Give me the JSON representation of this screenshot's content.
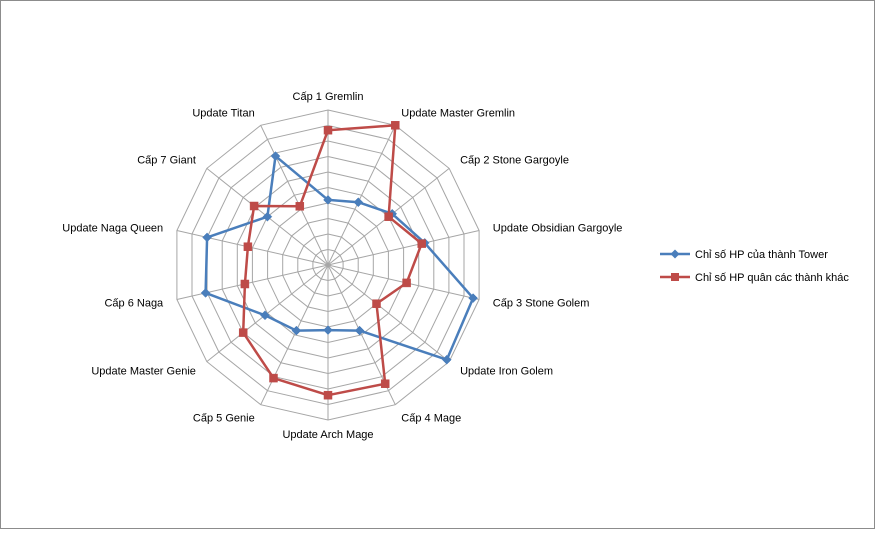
{
  "chart_data": {
    "type": "radar",
    "categories": [
      "Cấp 1 Gremlin",
      "Update Master Gremlin",
      "Cấp 2 Stone  Gargoyle",
      "Update Obsidian Gargoyle",
      "Cấp 3 Stone Golem",
      "Update Iron Golem",
      "Cấp 4 Mage",
      "Update Arch Mage",
      "Cấp 5 Genie",
      "Update Master Genie",
      "Cấp 6 Naga",
      "Update Naga Queen",
      "Cấp 7 Giant",
      "Update Titan"
    ],
    "rmax": 10,
    "rings": 10,
    "series": [
      {
        "name": "Chỉ số HP của thành Tower",
        "color": "#4a7ebb",
        "marker": "diamond",
        "values": [
          4.2,
          4.5,
          5.3,
          6.4,
          9.6,
          9.8,
          4.7,
          4.2,
          4.7,
          5.2,
          8.1,
          8.0,
          5.0,
          7.8
        ]
      },
      {
        "name": "Chỉ số HP quân các thành khác",
        "color": "#be4b48",
        "marker": "square",
        "values": [
          8.7,
          10.0,
          5.0,
          6.2,
          5.2,
          4.0,
          8.5,
          8.4,
          8.1,
          7.0,
          5.5,
          5.3,
          6.1,
          4.2
        ]
      }
    ]
  }
}
